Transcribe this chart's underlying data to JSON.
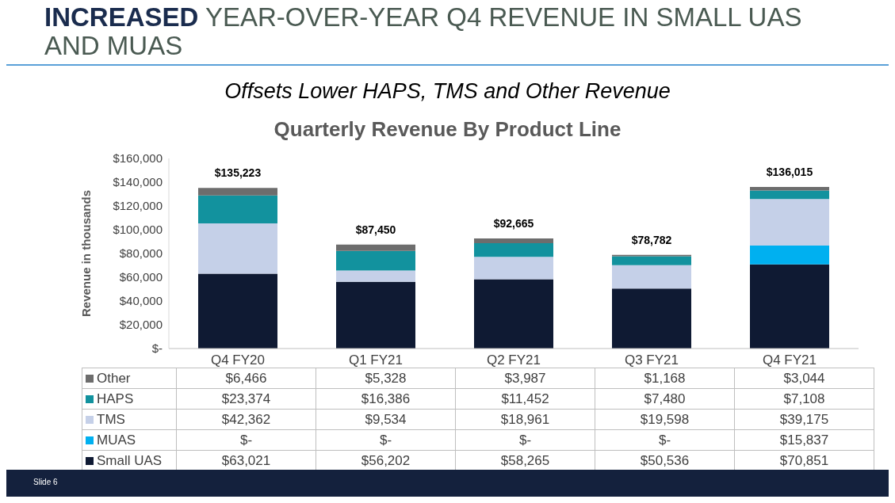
{
  "chart_data": {
    "type": "bar",
    "title": "INCREASED YEAR-OVER-YEAR Q4 REVENUE IN SMALL UAS AND MUAS",
    "subtitle": "Offsets Lower HAPS, TMS and Other Revenue",
    "annotations": [
      "Quarterly Revenue By Product Line",
      "Slide 6"
    ],
    "ylabel": "Revenue in thousands",
    "categories": [
      "Q4 FY20",
      "Q1 FY21",
      "Q2 FY21",
      "Q3 FY21",
      "Q4 FY21"
    ],
    "stacked": true,
    "legend": "bottom",
    "ylim": [
      0,
      160000
    ],
    "yticks": [
      {
        "value": 0,
        "label": "$-"
      },
      {
        "value": 20000,
        "label": "$20,000"
      },
      {
        "value": 40000,
        "label": "$40,000"
      },
      {
        "value": 60000,
        "label": "$60,000"
      },
      {
        "value": 80000,
        "label": "$80,000"
      },
      {
        "value": 100000,
        "label": "$100,000"
      },
      {
        "value": 120000,
        "label": "$120,000"
      },
      {
        "value": 140000,
        "label": "$140,000"
      },
      {
        "value": 160000,
        "label": "$160,000"
      }
    ],
    "totals": [
      "$135,223",
      "$87,450",
      "$92,665",
      "$78,782",
      "$136,015"
    ],
    "series": [
      {
        "name": "Small UAS",
        "color": "#0f1a33",
        "values": [
          63021,
          56202,
          58265,
          50536,
          70851
        ],
        "value_labels": [
          "$63,021",
          "$56,202",
          "$58,265",
          "$50,536",
          "$70,851"
        ]
      },
      {
        "name": "MUAS",
        "color": "#00b0f0",
        "values": [
          0,
          0,
          0,
          0,
          15837
        ],
        "value_labels": [
          "$-",
          "$-",
          "$-",
          "$-",
          "$15,837"
        ]
      },
      {
        "name": "TMS",
        "color": "#c5d0e8",
        "values": [
          42362,
          9534,
          18961,
          19598,
          39175
        ],
        "value_labels": [
          "$42,362",
          "$9,534",
          "$18,961",
          "$19,598",
          "$39,175"
        ]
      },
      {
        "name": "HAPS",
        "color": "#12929e",
        "values": [
          23374,
          16386,
          11452,
          7480,
          7108
        ],
        "value_labels": [
          "$23,374",
          "$16,386",
          "$11,452",
          "$7,480",
          "$7,108"
        ]
      },
      {
        "name": "Other",
        "color": "#6d6d6d",
        "values": [
          6466,
          5328,
          3987,
          1168,
          3044
        ],
        "value_labels": [
          "$6,466",
          "$5,328",
          "$3,987",
          "$1,168",
          "$3,044"
        ]
      }
    ]
  }
}
